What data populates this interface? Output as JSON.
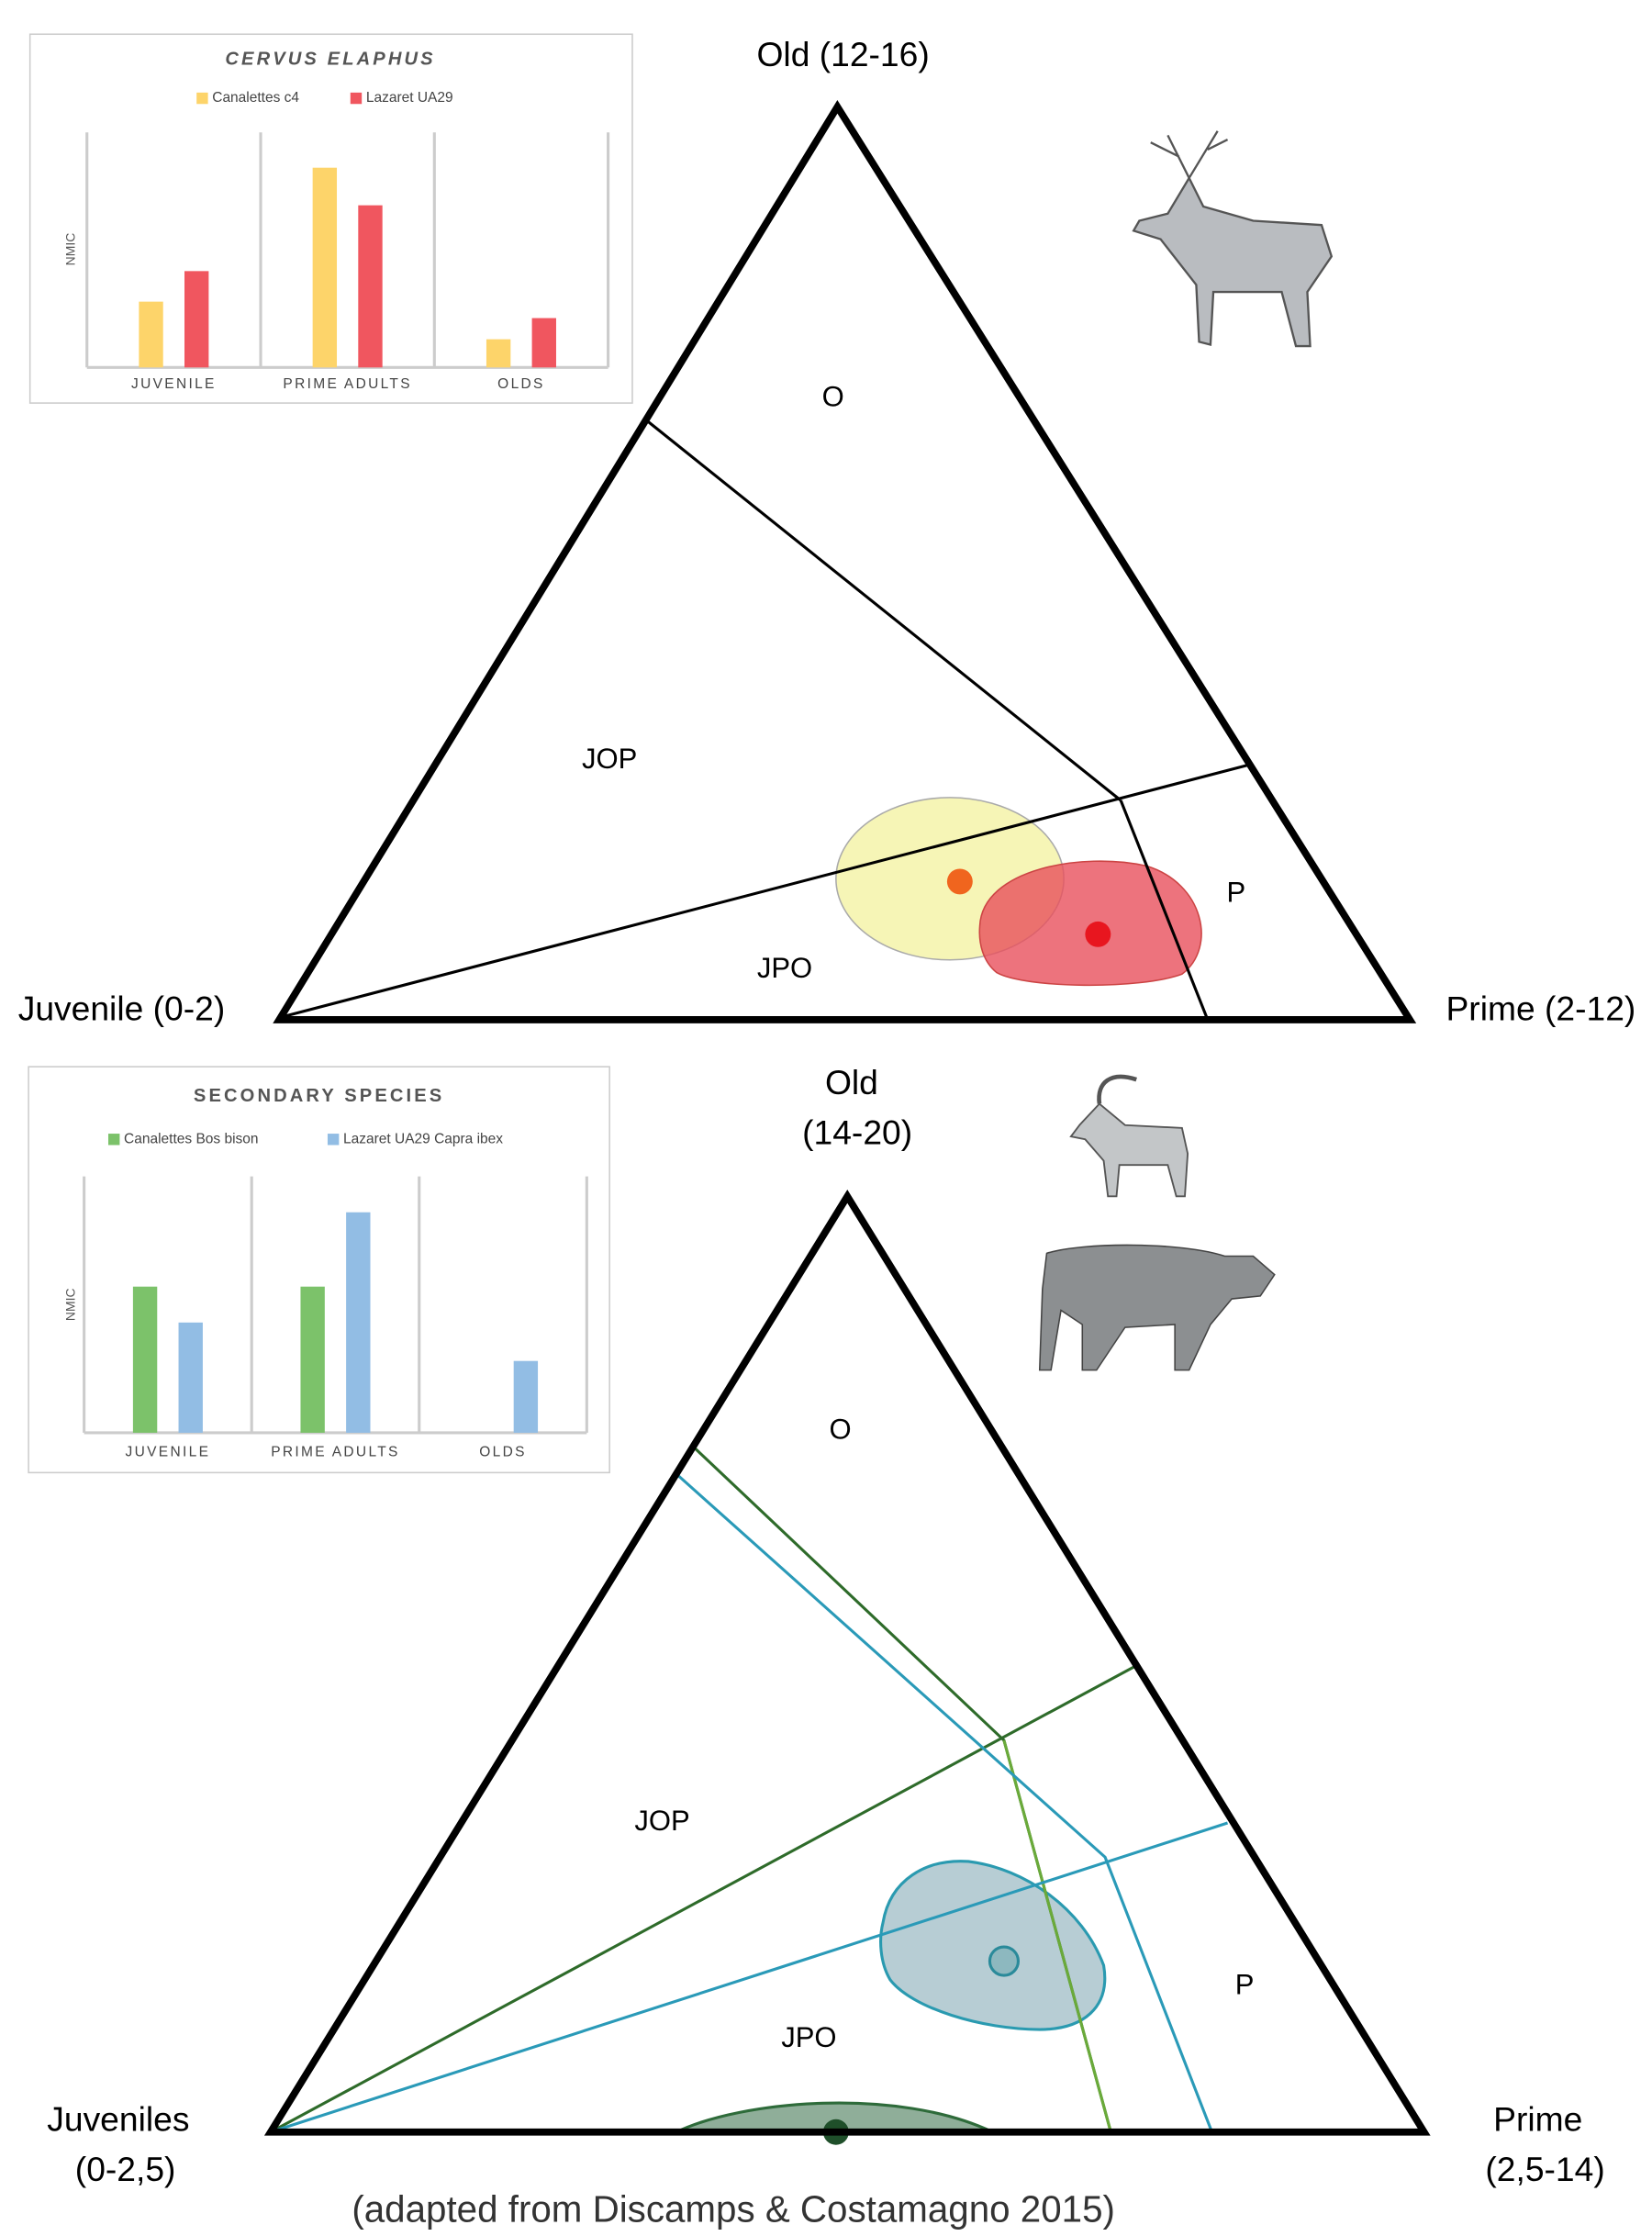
{
  "chart_data": [
    {
      "type": "bar",
      "title": "CERVUS ELAPHUS",
      "y_label": "NMIC",
      "categories": [
        "JUVENILE",
        "PRIME ADULTS",
        "OLDS"
      ],
      "series": [
        {
          "name": "Canalettes c4",
          "color": "#fdd46a",
          "values": [
            28,
            85,
            12
          ]
        },
        {
          "name": "Lazaret UA29",
          "color": "#f0565f",
          "values": [
            41,
            69,
            21
          ]
        }
      ],
      "ylim": [
        0,
        100
      ]
    },
    {
      "type": "bar",
      "title": "SECONDARY SPECIES",
      "y_label": "NMIC",
      "categories": [
        "JUVENILE",
        "PRIME ADULTS",
        "OLDS"
      ],
      "series": [
        {
          "name": "Canalettes Bos bison",
          "color": "#7cc26a",
          "values": [
            57,
            57,
            null
          ]
        },
        {
          "name": "Lazaret UA29 Capra ibex",
          "color": "#92bde4",
          "values": [
            43,
            86,
            28
          ]
        }
      ],
      "ylim": [
        0,
        100
      ]
    }
  ],
  "ternary": [
    {
      "top": [
        "Old (12-16)"
      ],
      "left": [
        "Juvenile (0-2)"
      ],
      "right": [
        "Prime (2-12)"
      ],
      "regions": [
        "O",
        "JOP",
        "JPO",
        "P"
      ]
    },
    {
      "top": [
        "Old",
        "(14-20)"
      ],
      "left": [
        "Juveniles",
        "(0-2,5)"
      ],
      "right": [
        "Prime",
        "(2,5-14)"
      ],
      "regions": [
        "O",
        "JOP",
        "JPO",
        "P"
      ]
    }
  ],
  "caption": "(adapted from Discamps & Costamagno 2015)"
}
